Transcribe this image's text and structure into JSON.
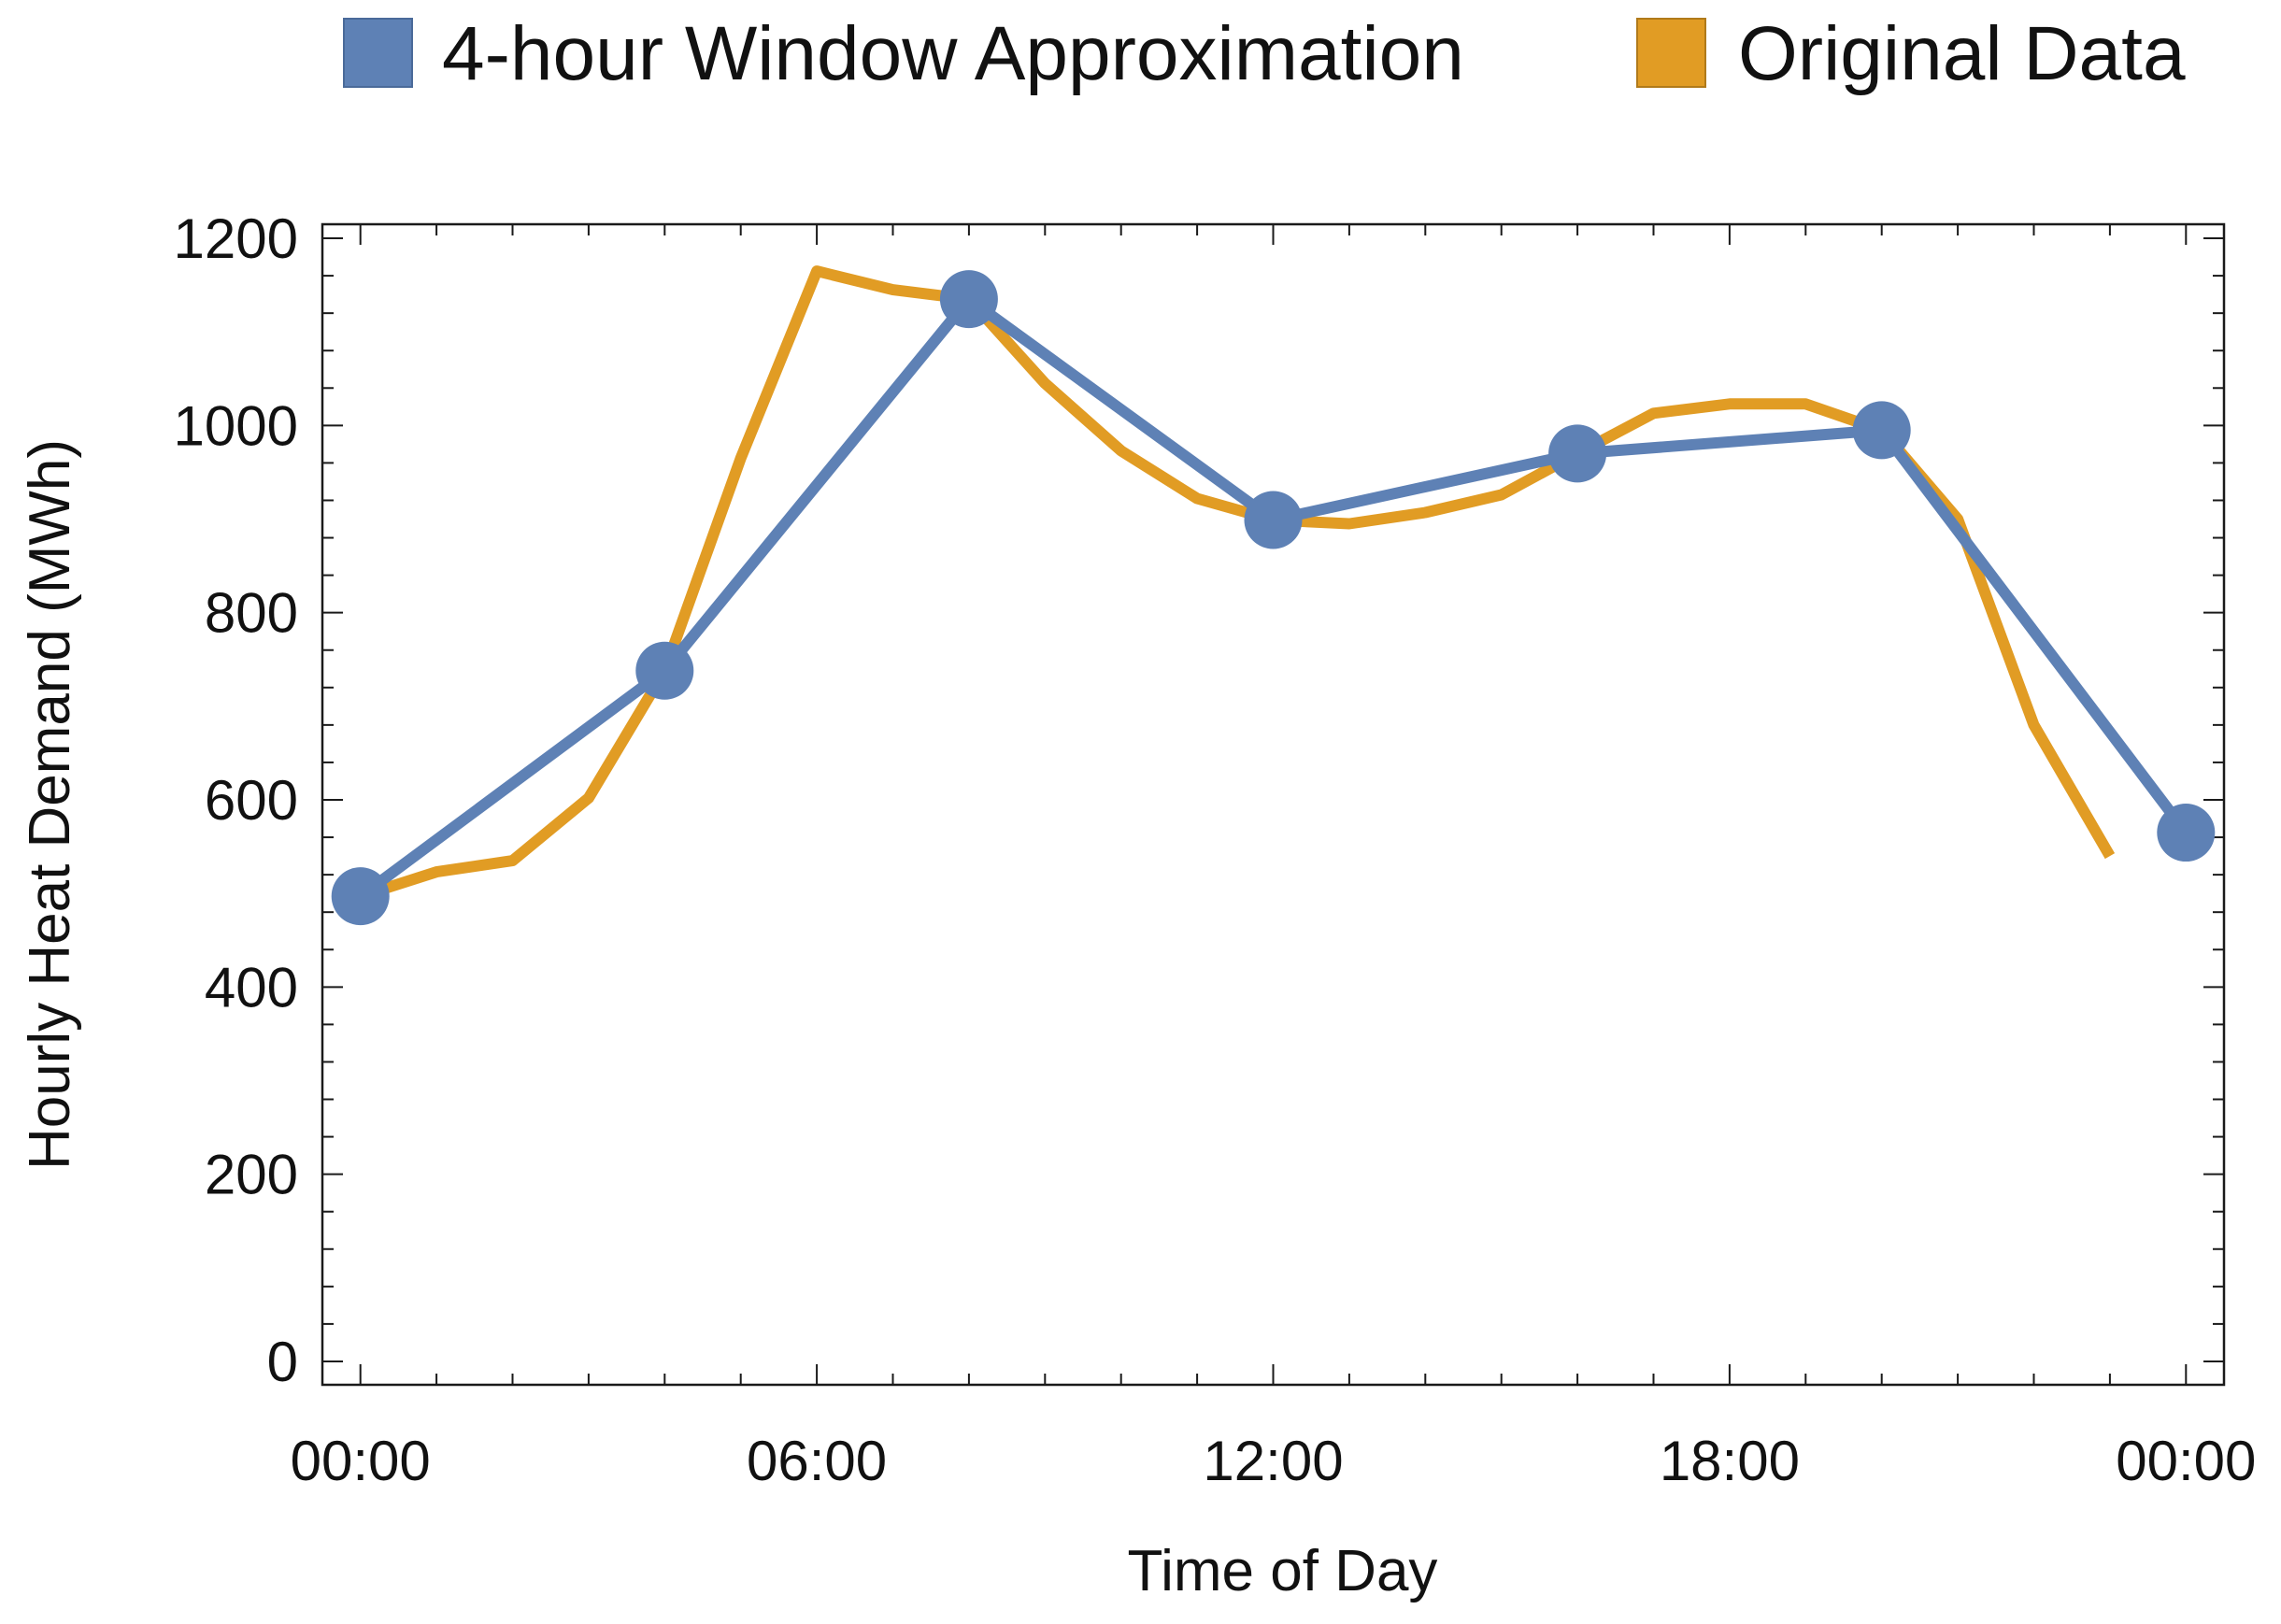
{
  "chart_data": {
    "type": "line",
    "title": "",
    "xlabel": "Time of Day",
    "ylabel": "Hourly Heat Demand (MWh)",
    "x_tick_labels": [
      "00:00",
      "06:00",
      "12:00",
      "18:00",
      "00:00"
    ],
    "x_tick_values": [
      0,
      6,
      12,
      18,
      24
    ],
    "xlim": [
      -0.5,
      24.5
    ],
    "y_ticks": [
      0,
      200,
      400,
      600,
      800,
      1000,
      1200
    ],
    "ylim": [
      -25,
      1215
    ],
    "grid": false,
    "legend_position": "top",
    "series": [
      {
        "name": "4-hour Window Approximation",
        "color": "#5e81b5",
        "markers": true,
        "x": [
          0,
          4,
          8,
          12,
          16,
          20,
          24
        ],
        "y": [
          497,
          738,
          1135,
          899,
          970,
          995,
          565
        ]
      },
      {
        "name": "Original Data",
        "color": "#e19c24",
        "markers": false,
        "x": [
          0,
          1,
          2,
          3,
          4,
          5,
          6,
          7,
          8,
          9,
          10,
          11,
          12,
          13,
          14,
          15,
          16,
          17,
          18,
          19,
          20,
          21,
          22,
          23
        ],
        "y": [
          497,
          523,
          535,
          602,
          738,
          965,
          1165,
          1145,
          1135,
          1045,
          973,
          922,
          899,
          895,
          907,
          926,
          970,
          1013,
          1023,
          1023,
          995,
          900,
          680,
          540
        ]
      }
    ]
  }
}
